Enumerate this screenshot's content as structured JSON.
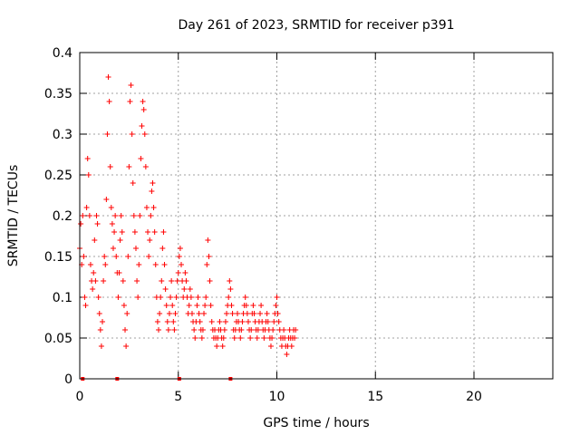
{
  "chart_data": {
    "type": "scatter",
    "title": "Day 261 of 2023, SRMTID for receiver p391",
    "xlabel": "GPS time / hours",
    "ylabel": "SRMTID / TECUs",
    "xlim": [
      0,
      24
    ],
    "ylim": [
      0,
      0.4
    ],
    "xticks": [
      0,
      5,
      10,
      15,
      20
    ],
    "xtick_labels": [
      "0",
      "5",
      "10",
      "15",
      "20"
    ],
    "yticks": [
      0,
      0.05,
      0.1,
      0.15,
      0.2,
      0.25,
      0.3,
      0.35,
      0.4
    ],
    "ytick_labels": [
      "0",
      "0.05",
      "0.1",
      "0.15",
      "0.2",
      "0.25",
      "0.3",
      "0.35",
      "0.4"
    ],
    "grid": true,
    "marker": "+",
    "series": [
      {
        "name": "SRMTID",
        "color": "#ff0000",
        "points": [
          [
            0.0,
            0.16
          ],
          [
            0.05,
            0.19
          ],
          [
            0.1,
            0.14
          ],
          [
            0.15,
            0.2
          ],
          [
            0.2,
            0.15
          ],
          [
            0.25,
            0.1
          ],
          [
            0.3,
            0.09
          ],
          [
            0.35,
            0.21
          ],
          [
            0.4,
            0.27
          ],
          [
            0.45,
            0.25
          ],
          [
            0.5,
            0.2
          ],
          [
            0.55,
            0.14
          ],
          [
            0.6,
            0.12
          ],
          [
            0.65,
            0.11
          ],
          [
            0.7,
            0.13
          ],
          [
            0.75,
            0.17
          ],
          [
            0.8,
            0.12
          ],
          [
            0.85,
            0.2
          ],
          [
            0.9,
            0.19
          ],
          [
            0.95,
            0.1
          ],
          [
            1.0,
            0.08
          ],
          [
            1.05,
            0.06
          ],
          [
            1.1,
            0.04
          ],
          [
            1.15,
            0.07
          ],
          [
            1.2,
            0.12
          ],
          [
            1.25,
            0.15
          ],
          [
            1.3,
            0.14
          ],
          [
            1.35,
            0.22
          ],
          [
            1.4,
            0.3
          ],
          [
            1.45,
            0.37
          ],
          [
            1.5,
            0.34
          ],
          [
            1.55,
            0.26
          ],
          [
            1.6,
            0.21
          ],
          [
            1.65,
            0.19
          ],
          [
            1.7,
            0.16
          ],
          [
            1.75,
            0.18
          ],
          [
            1.8,
            0.2
          ],
          [
            1.85,
            0.15
          ],
          [
            1.9,
            0.13
          ],
          [
            1.95,
            0.1
          ],
          [
            2.0,
            0.13
          ],
          [
            2.05,
            0.17
          ],
          [
            2.1,
            0.2
          ],
          [
            2.15,
            0.18
          ],
          [
            2.2,
            0.12
          ],
          [
            2.25,
            0.09
          ],
          [
            2.3,
            0.06
          ],
          [
            2.35,
            0.04
          ],
          [
            2.4,
            0.08
          ],
          [
            2.45,
            0.15
          ],
          [
            2.5,
            0.26
          ],
          [
            2.55,
            0.34
          ],
          [
            2.6,
            0.36
          ],
          [
            2.65,
            0.3
          ],
          [
            2.7,
            0.24
          ],
          [
            2.75,
            0.2
          ],
          [
            2.8,
            0.18
          ],
          [
            2.85,
            0.16
          ],
          [
            2.9,
            0.12
          ],
          [
            2.95,
            0.1
          ],
          [
            3.0,
            0.14
          ],
          [
            3.05,
            0.2
          ],
          [
            3.1,
            0.27
          ],
          [
            3.15,
            0.31
          ],
          [
            3.2,
            0.34
          ],
          [
            3.25,
            0.33
          ],
          [
            3.3,
            0.3
          ],
          [
            3.35,
            0.26
          ],
          [
            3.4,
            0.21
          ],
          [
            3.45,
            0.18
          ],
          [
            3.5,
            0.15
          ],
          [
            3.55,
            0.17
          ],
          [
            3.6,
            0.2
          ],
          [
            3.65,
            0.23
          ],
          [
            3.7,
            0.24
          ],
          [
            3.75,
            0.21
          ],
          [
            3.8,
            0.18
          ],
          [
            3.85,
            0.14
          ],
          [
            3.9,
            0.1
          ],
          [
            3.95,
            0.07
          ],
          [
            4.0,
            0.06
          ],
          [
            4.05,
            0.08
          ],
          [
            4.1,
            0.1
          ],
          [
            4.15,
            0.12
          ],
          [
            4.2,
            0.16
          ],
          [
            4.25,
            0.18
          ],
          [
            4.3,
            0.14
          ],
          [
            4.35,
            0.11
          ],
          [
            4.4,
            0.09
          ],
          [
            4.45,
            0.07
          ],
          [
            4.5,
            0.06
          ],
          [
            4.55,
            0.08
          ],
          [
            4.6,
            0.1
          ],
          [
            4.65,
            0.12
          ],
          [
            4.7,
            0.09
          ],
          [
            4.75,
            0.07
          ],
          [
            4.8,
            0.06
          ],
          [
            4.85,
            0.08
          ],
          [
            4.9,
            0.1
          ],
          [
            4.95,
            0.12
          ],
          [
            5.0,
            0.13
          ],
          [
            5.05,
            0.15
          ],
          [
            5.1,
            0.16
          ],
          [
            5.15,
            0.14
          ],
          [
            5.2,
            0.12
          ],
          [
            5.25,
            0.1
          ],
          [
            5.3,
            0.11
          ],
          [
            5.35,
            0.13
          ],
          [
            5.4,
            0.12
          ],
          [
            5.45,
            0.1
          ],
          [
            5.5,
            0.08
          ],
          [
            5.55,
            0.09
          ],
          [
            5.6,
            0.11
          ],
          [
            5.65,
            0.1
          ],
          [
            5.7,
            0.08
          ],
          [
            5.75,
            0.07
          ],
          [
            5.8,
            0.06
          ],
          [
            5.85,
            0.05
          ],
          [
            5.9,
            0.07
          ],
          [
            5.95,
            0.09
          ],
          [
            6.0,
            0.1
          ],
          [
            6.05,
            0.08
          ],
          [
            6.1,
            0.07
          ],
          [
            6.15,
            0.06
          ],
          [
            6.2,
            0.05
          ],
          [
            6.25,
            0.06
          ],
          [
            6.3,
            0.08
          ],
          [
            6.35,
            0.09
          ],
          [
            6.4,
            0.1
          ],
          [
            6.45,
            0.14
          ],
          [
            6.5,
            0.17
          ],
          [
            6.55,
            0.15
          ],
          [
            6.6,
            0.12
          ],
          [
            6.65,
            0.09
          ],
          [
            6.7,
            0.07
          ],
          [
            6.75,
            0.06
          ],
          [
            6.8,
            0.05
          ],
          [
            6.85,
            0.06
          ],
          [
            6.9,
            0.05
          ],
          [
            6.95,
            0.04
          ],
          [
            7.0,
            0.05
          ],
          [
            7.05,
            0.06
          ],
          [
            7.1,
            0.07
          ],
          [
            7.15,
            0.06
          ],
          [
            7.2,
            0.05
          ],
          [
            7.25,
            0.04
          ],
          [
            7.3,
            0.05
          ],
          [
            7.35,
            0.06
          ],
          [
            7.4,
            0.07
          ],
          [
            7.45,
            0.08
          ],
          [
            7.5,
            0.09
          ],
          [
            7.55,
            0.1
          ],
          [
            7.6,
            0.12
          ],
          [
            7.65,
            0.11
          ],
          [
            7.7,
            0.09
          ],
          [
            7.75,
            0.08
          ],
          [
            7.8,
            0.06
          ],
          [
            7.85,
            0.05
          ],
          [
            7.9,
            0.06
          ],
          [
            7.95,
            0.07
          ],
          [
            8.0,
            0.08
          ],
          [
            8.05,
            0.07
          ],
          [
            8.1,
            0.06
          ],
          [
            8.15,
            0.05
          ],
          [
            8.2,
            0.06
          ],
          [
            8.25,
            0.07
          ],
          [
            8.3,
            0.08
          ],
          [
            8.35,
            0.09
          ],
          [
            8.4,
            0.1
          ],
          [
            8.45,
            0.09
          ],
          [
            8.5,
            0.08
          ],
          [
            8.55,
            0.07
          ],
          [
            8.6,
            0.06
          ],
          [
            8.65,
            0.05
          ],
          [
            8.7,
            0.06
          ],
          [
            8.75,
            0.08
          ],
          [
            8.8,
            0.09
          ],
          [
            8.85,
            0.08
          ],
          [
            8.9,
            0.07
          ],
          [
            8.95,
            0.06
          ],
          [
            9.0,
            0.05
          ],
          [
            9.05,
            0.06
          ],
          [
            9.1,
            0.07
          ],
          [
            9.15,
            0.08
          ],
          [
            9.2,
            0.09
          ],
          [
            9.25,
            0.07
          ],
          [
            9.3,
            0.06
          ],
          [
            9.35,
            0.05
          ],
          [
            9.4,
            0.06
          ],
          [
            9.45,
            0.07
          ],
          [
            9.5,
            0.08
          ],
          [
            9.55,
            0.07
          ],
          [
            9.6,
            0.06
          ],
          [
            9.65,
            0.05
          ],
          [
            9.7,
            0.04
          ],
          [
            9.75,
            0.05
          ],
          [
            9.8,
            0.06
          ],
          [
            9.85,
            0.07
          ],
          [
            9.9,
            0.08
          ],
          [
            9.95,
            0.09
          ],
          [
            10.0,
            0.1
          ],
          [
            10.05,
            0.08
          ],
          [
            10.1,
            0.07
          ],
          [
            10.15,
            0.06
          ],
          [
            10.2,
            0.05
          ],
          [
            10.25,
            0.04
          ],
          [
            10.3,
            0.05
          ],
          [
            10.35,
            0.06
          ],
          [
            10.4,
            0.05
          ],
          [
            10.45,
            0.04
          ],
          [
            10.5,
            0.03
          ],
          [
            10.55,
            0.04
          ],
          [
            10.6,
            0.05
          ],
          [
            10.65,
            0.06
          ],
          [
            10.7,
            0.05
          ],
          [
            10.75,
            0.04
          ],
          [
            10.8,
            0.05
          ],
          [
            10.85,
            0.06
          ],
          [
            10.9,
            0.05
          ],
          [
            10.95,
            0.06
          ]
        ]
      }
    ],
    "zero_markers": [
      0.15,
      1.9,
      5.05,
      7.65
    ]
  }
}
